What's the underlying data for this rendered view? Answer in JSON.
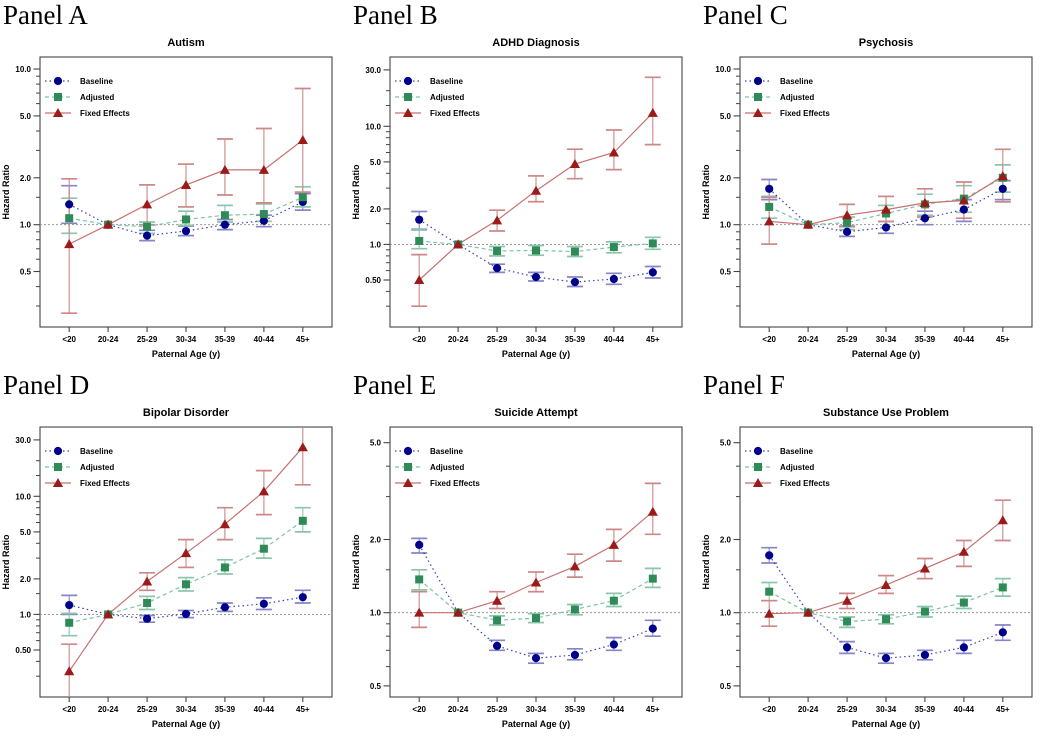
{
  "figure": {
    "xlabel": "Paternal Age (y)",
    "ylabel": "Hazard Ratio",
    "legend_labels": [
      "Baseline",
      "Adjusted",
      "Fixed Effects"
    ],
    "colors": {
      "baseline_marker": "#00008B",
      "baseline_line": "#3B3BC4",
      "baseline_ci": "#8585C8",
      "adjusted_marker": "#2E8B57",
      "adjusted_line": "#7CC4A4",
      "adjusted_ci": "#8CC6AA",
      "fixed_marker": "#9B1B1B",
      "fixed_line": "#C87070",
      "fixed_ci": "#CD8787",
      "ref_line": "#8A8A8A",
      "axis": "#444444"
    }
  },
  "chart_data": [
    {
      "type": "line",
      "panel_label": "Panel A",
      "title": "Autism",
      "xlabel": "Paternal Age (y)",
      "ylabel": "Hazard Ratio",
      "categories": [
        "<20",
        "20-24",
        "25-29",
        "30-34",
        "35-39",
        "40-44",
        "45+"
      ],
      "ylim": [
        0.22,
        11.95
      ],
      "ytick_values": [
        0.5,
        1.0,
        2.0,
        5.0,
        10.0
      ],
      "ytick_labels": [
        "0.5",
        "1.0",
        "2.0",
        "5.0",
        "10.0"
      ],
      "yticks_minor": [
        0.3,
        0.4,
        0.6,
        0.7,
        0.8,
        0.9,
        1.5,
        3,
        4,
        6,
        7,
        8,
        9
      ],
      "ref_line": 1.0,
      "legend_position": "top-left",
      "series": [
        {
          "name": "Baseline",
          "marker": "circle",
          "line": "dotted",
          "color": "#00008B",
          "line_color": "#3B3BC4",
          "ci_color": "#8585C8",
          "values": [
            1.35,
            1.0,
            0.85,
            0.91,
            1.0,
            1.06,
            1.4
          ],
          "ci_low": [
            1.02,
            null,
            0.79,
            0.85,
            0.93,
            0.97,
            1.24
          ],
          "ci_high": [
            1.78,
            null,
            0.92,
            0.98,
            1.08,
            1.15,
            1.58
          ]
        },
        {
          "name": "Adjusted",
          "marker": "square",
          "line": "dashed",
          "color": "#2E8B57",
          "line_color": "#7CC4A4",
          "ci_color": "#8CC6AA",
          "values": [
            1.1,
            1.0,
            0.97,
            1.08,
            1.15,
            1.17,
            1.5
          ],
          "ci_low": [
            0.88,
            null,
            0.88,
            0.99,
            1.04,
            1.05,
            1.3
          ],
          "ci_high": [
            1.48,
            null,
            1.04,
            1.22,
            1.33,
            1.36,
            1.75
          ]
        },
        {
          "name": "Fixed Effects",
          "marker": "triangle",
          "line": "solid",
          "color": "#9B1B1B",
          "line_color": "#C87070",
          "ci_color": "#CD8787",
          "values": [
            0.75,
            1.0,
            1.35,
            1.8,
            2.25,
            2.25,
            3.5
          ],
          "ci_low": [
            0.27,
            null,
            1.0,
            1.3,
            1.55,
            1.38,
            1.62
          ],
          "ci_high": [
            1.97,
            null,
            1.8,
            2.45,
            3.55,
            4.15,
            7.5
          ]
        }
      ]
    },
    {
      "type": "line",
      "panel_label": "Panel B",
      "title": "ADHD Diagnosis",
      "xlabel": "Paternal Age (y)",
      "ylabel": "Hazard Ratio",
      "categories": [
        "<20",
        "20-24",
        "25-29",
        "30-34",
        "35-39",
        "40-44",
        "45+"
      ],
      "ylim": [
        0.2,
        38.6
      ],
      "ytick_values": [
        0.5,
        1.0,
        2.0,
        5.0,
        10.0,
        30.0
      ],
      "ytick_labels": [
        "0.50",
        "1.0",
        "2.0",
        "5.0",
        "10.0",
        "30.0"
      ],
      "yticks_minor": [
        0.3,
        0.4,
        0.6,
        0.7,
        0.8,
        0.9,
        1.5,
        3,
        4,
        6,
        7,
        8,
        9,
        15,
        20
      ],
      "ref_line": 1.0,
      "legend_position": "top-left",
      "series": [
        {
          "name": "Baseline",
          "marker": "circle",
          "line": "dotted",
          "color": "#00008B",
          "line_color": "#3B3BC4",
          "ci_color": "#8585C8",
          "values": [
            1.62,
            1.0,
            0.63,
            0.53,
            0.48,
            0.51,
            0.58
          ],
          "ci_low": [
            1.33,
            null,
            0.58,
            0.49,
            0.44,
            0.46,
            0.52
          ],
          "ci_high": [
            1.9,
            null,
            0.68,
            0.58,
            0.53,
            0.57,
            0.65
          ]
        },
        {
          "name": "Adjusted",
          "marker": "square",
          "line": "dashed",
          "color": "#2E8B57",
          "line_color": "#7CC4A4",
          "ci_color": "#8CC6AA",
          "values": [
            1.07,
            1.0,
            0.88,
            0.89,
            0.87,
            0.95,
            1.02
          ],
          "ci_low": [
            0.92,
            null,
            0.8,
            0.81,
            0.79,
            0.85,
            0.91
          ],
          "ci_high": [
            1.35,
            null,
            0.96,
            0.98,
            0.96,
            1.05,
            1.15
          ]
        },
        {
          "name": "Fixed Effects",
          "marker": "triangle",
          "line": "solid",
          "color": "#9B1B1B",
          "line_color": "#C87070",
          "ci_color": "#CD8787",
          "values": [
            0.5,
            1.0,
            1.6,
            2.85,
            4.8,
            6.0,
            13.0
          ],
          "ci_low": [
            0.3,
            null,
            1.3,
            2.3,
            3.6,
            4.3,
            7.0
          ],
          "ci_high": [
            0.82,
            null,
            1.95,
            3.8,
            6.4,
            9.3,
            26.0
          ]
        }
      ]
    },
    {
      "type": "line",
      "panel_label": "Panel C",
      "title": "Psychosis",
      "xlabel": "Paternal Age (y)",
      "ylabel": "Hazard Ratio",
      "categories": [
        "<20",
        "20-24",
        "25-29",
        "30-34",
        "35-39",
        "40-44",
        "45+"
      ],
      "ylim": [
        0.22,
        11.95
      ],
      "ytick_values": [
        0.5,
        1.0,
        2.0,
        5.0,
        10.0
      ],
      "ytick_labels": [
        "0.5",
        "1.0",
        "2.0",
        "5.0",
        "10.0"
      ],
      "yticks_minor": [
        0.3,
        0.4,
        0.6,
        0.7,
        0.8,
        0.9,
        1.5,
        3,
        4,
        6,
        7,
        8,
        9
      ],
      "ref_line": 1.0,
      "legend_position": "top-left",
      "series": [
        {
          "name": "Baseline",
          "marker": "circle",
          "line": "dotted",
          "color": "#00008B",
          "line_color": "#3B3BC4",
          "ci_color": "#8585C8",
          "values": [
            1.7,
            1.0,
            0.9,
            0.96,
            1.1,
            1.25,
            1.7
          ],
          "ci_low": [
            1.45,
            null,
            0.84,
            0.88,
            1.0,
            1.05,
            1.45
          ],
          "ci_high": [
            1.95,
            null,
            0.97,
            1.05,
            1.22,
            1.45,
            1.92
          ]
        },
        {
          "name": "Adjusted",
          "marker": "square",
          "line": "dashed",
          "color": "#2E8B57",
          "line_color": "#7CC4A4",
          "ci_color": "#8CC6AA",
          "values": [
            1.3,
            1.0,
            1.03,
            1.18,
            1.35,
            1.47,
            2.0
          ],
          "ci_low": [
            1.1,
            null,
            0.93,
            1.05,
            1.15,
            1.2,
            1.62
          ],
          "ci_high": [
            1.52,
            null,
            1.12,
            1.33,
            1.57,
            1.78,
            2.42
          ]
        },
        {
          "name": "Fixed Effects",
          "marker": "triangle",
          "line": "solid",
          "color": "#9B1B1B",
          "line_color": "#C87070",
          "ci_color": "#CD8787",
          "values": [
            1.05,
            1.0,
            1.15,
            1.25,
            1.38,
            1.43,
            2.05
          ],
          "ci_low": [
            0.75,
            null,
            0.98,
            1.05,
            1.12,
            1.1,
            1.4
          ],
          "ci_high": [
            1.5,
            null,
            1.35,
            1.52,
            1.7,
            1.88,
            3.05
          ]
        }
      ]
    },
    {
      "type": "line",
      "panel_label": "Panel D",
      "title": "Bipolar Disorder",
      "xlabel": "Paternal Age (y)",
      "ylabel": "Hazard Ratio",
      "categories": [
        "<20",
        "20-24",
        "25-29",
        "30-34",
        "35-39",
        "40-44",
        "45+"
      ],
      "ylim": [
        0.2,
        38.6
      ],
      "ytick_values": [
        0.5,
        1.0,
        2.0,
        5.0,
        10.0,
        30.0
      ],
      "ytick_labels": [
        "0.50",
        "1.0",
        "2.0",
        "5.0",
        "10.0",
        "30.0"
      ],
      "yticks_minor": [
        0.3,
        0.4,
        0.6,
        0.7,
        0.8,
        0.9,
        1.5,
        3,
        4,
        6,
        7,
        8,
        9,
        15,
        20
      ],
      "ref_line": 1.0,
      "legend_position": "top-left",
      "series": [
        {
          "name": "Baseline",
          "marker": "circle",
          "line": "dotted",
          "color": "#00008B",
          "line_color": "#3B3BC4",
          "ci_color": "#8585C8",
          "values": [
            1.2,
            1.0,
            0.92,
            1.01,
            1.15,
            1.23,
            1.4
          ],
          "ci_low": [
            1.0,
            null,
            0.86,
            0.94,
            1.06,
            1.1,
            1.25
          ],
          "ci_high": [
            1.45,
            null,
            0.98,
            1.08,
            1.25,
            1.38,
            1.6
          ]
        },
        {
          "name": "Adjusted",
          "marker": "square",
          "line": "dashed",
          "color": "#2E8B57",
          "line_color": "#7CC4A4",
          "ci_color": "#8CC6AA",
          "values": [
            0.85,
            1.0,
            1.25,
            1.8,
            2.5,
            3.6,
            6.2
          ],
          "ci_low": [
            0.66,
            null,
            1.1,
            1.58,
            2.2,
            3.0,
            5.0
          ],
          "ci_high": [
            1.02,
            null,
            1.42,
            2.05,
            2.9,
            4.4,
            8.0
          ]
        },
        {
          "name": "Fixed Effects",
          "marker": "triangle",
          "line": "solid",
          "color": "#9B1B1B",
          "line_color": "#C87070",
          "ci_color": "#CD8787",
          "values": [
            0.33,
            1.0,
            1.9,
            3.3,
            5.8,
            11.0,
            26.0
          ],
          "ci_low": [
            0.14,
            null,
            1.6,
            2.5,
            4.3,
            7.0,
            12.5
          ],
          "ci_high": [
            0.56,
            null,
            2.25,
            4.3,
            8.0,
            16.5,
            42.0
          ]
        }
      ]
    },
    {
      "type": "line",
      "panel_label": "Panel E",
      "title": "Suicide Attempt",
      "xlabel": "Paternal Age (y)",
      "ylabel": "Hazard Ratio",
      "categories": [
        "<20",
        "20-24",
        "25-29",
        "30-34",
        "35-39",
        "40-44",
        "45+"
      ],
      "ylim": [
        0.45,
        5.8
      ],
      "ytick_values": [
        0.5,
        1.0,
        2.0,
        5.0
      ],
      "ytick_labels": [
        "0.5",
        "1.0",
        "2.0",
        "5.0"
      ],
      "yticks_minor": [
        0.6,
        0.7,
        0.8,
        0.9,
        1.5,
        3,
        4
      ],
      "ref_line": 1.0,
      "legend_position": "top-left",
      "series": [
        {
          "name": "Baseline",
          "marker": "circle",
          "line": "dotted",
          "color": "#00008B",
          "line_color": "#3B3BC4",
          "ci_color": "#8585C8",
          "values": [
            1.9,
            1.0,
            0.73,
            0.65,
            0.67,
            0.74,
            0.86
          ],
          "ci_low": [
            1.76,
            null,
            0.7,
            0.62,
            0.64,
            0.7,
            0.8
          ],
          "ci_high": [
            2.02,
            null,
            0.77,
            0.68,
            0.71,
            0.79,
            0.93
          ]
        },
        {
          "name": "Adjusted",
          "marker": "square",
          "line": "dashed",
          "color": "#2E8B57",
          "line_color": "#7CC4A4",
          "ci_color": "#8CC6AA",
          "values": [
            1.37,
            1.0,
            0.93,
            0.95,
            1.03,
            1.12,
            1.38
          ],
          "ci_low": [
            1.24,
            null,
            0.89,
            0.91,
            0.98,
            1.06,
            1.27
          ],
          "ci_high": [
            1.5,
            null,
            0.97,
            0.99,
            1.08,
            1.2,
            1.52
          ]
        },
        {
          "name": "Fixed Effects",
          "marker": "triangle",
          "line": "solid",
          "color": "#9B1B1B",
          "line_color": "#C87070",
          "ci_color": "#CD8787",
          "values": [
            1.0,
            1.0,
            1.12,
            1.33,
            1.55,
            1.9,
            2.6
          ],
          "ci_low": [
            0.87,
            null,
            1.04,
            1.22,
            1.4,
            1.63,
            2.1
          ],
          "ci_high": [
            1.22,
            null,
            1.22,
            1.47,
            1.74,
            2.2,
            3.4
          ]
        }
      ]
    },
    {
      "type": "line",
      "panel_label": "Panel F",
      "title": "Substance Use Problem",
      "xlabel": "Paternal Age (y)",
      "ylabel": "Hazard Ratio",
      "categories": [
        "<20",
        "20-24",
        "25-29",
        "30-34",
        "35-39",
        "40-44",
        "45+"
      ],
      "ylim": [
        0.45,
        5.8
      ],
      "ytick_values": [
        0.5,
        1.0,
        2.0,
        5.0
      ],
      "ytick_labels": [
        "0.5",
        "1.0",
        "2.0",
        "5.0"
      ],
      "yticks_minor": [
        0.6,
        0.7,
        0.8,
        0.9,
        1.5,
        3,
        4
      ],
      "ref_line": 1.0,
      "legend_position": "top-left",
      "series": [
        {
          "name": "Baseline",
          "marker": "circle",
          "line": "dotted",
          "color": "#00008B",
          "line_color": "#3B3BC4",
          "ci_color": "#8585C8",
          "values": [
            1.72,
            1.0,
            0.72,
            0.65,
            0.67,
            0.72,
            0.83
          ],
          "ci_low": [
            1.6,
            null,
            0.68,
            0.62,
            0.64,
            0.68,
            0.77
          ],
          "ci_high": [
            1.85,
            null,
            0.76,
            0.68,
            0.7,
            0.77,
            0.89
          ]
        },
        {
          "name": "Adjusted",
          "marker": "square",
          "line": "dashed",
          "color": "#2E8B57",
          "line_color": "#7CC4A4",
          "ci_color": "#8CC6AA",
          "values": [
            1.22,
            1.0,
            0.92,
            0.94,
            1.01,
            1.1,
            1.27
          ],
          "ci_low": [
            1.12,
            null,
            0.87,
            0.9,
            0.96,
            1.04,
            1.17
          ],
          "ci_high": [
            1.33,
            null,
            0.96,
            0.98,
            1.06,
            1.17,
            1.38
          ]
        },
        {
          "name": "Fixed Effects",
          "marker": "triangle",
          "line": "solid",
          "color": "#9B1B1B",
          "line_color": "#C87070",
          "ci_color": "#CD8787",
          "values": [
            0.99,
            1.0,
            1.12,
            1.3,
            1.52,
            1.78,
            2.4
          ],
          "ci_low": [
            0.88,
            null,
            1.04,
            1.2,
            1.38,
            1.55,
            1.98
          ],
          "ci_high": [
            1.12,
            null,
            1.2,
            1.42,
            1.67,
            1.98,
            2.9
          ]
        }
      ]
    }
  ]
}
